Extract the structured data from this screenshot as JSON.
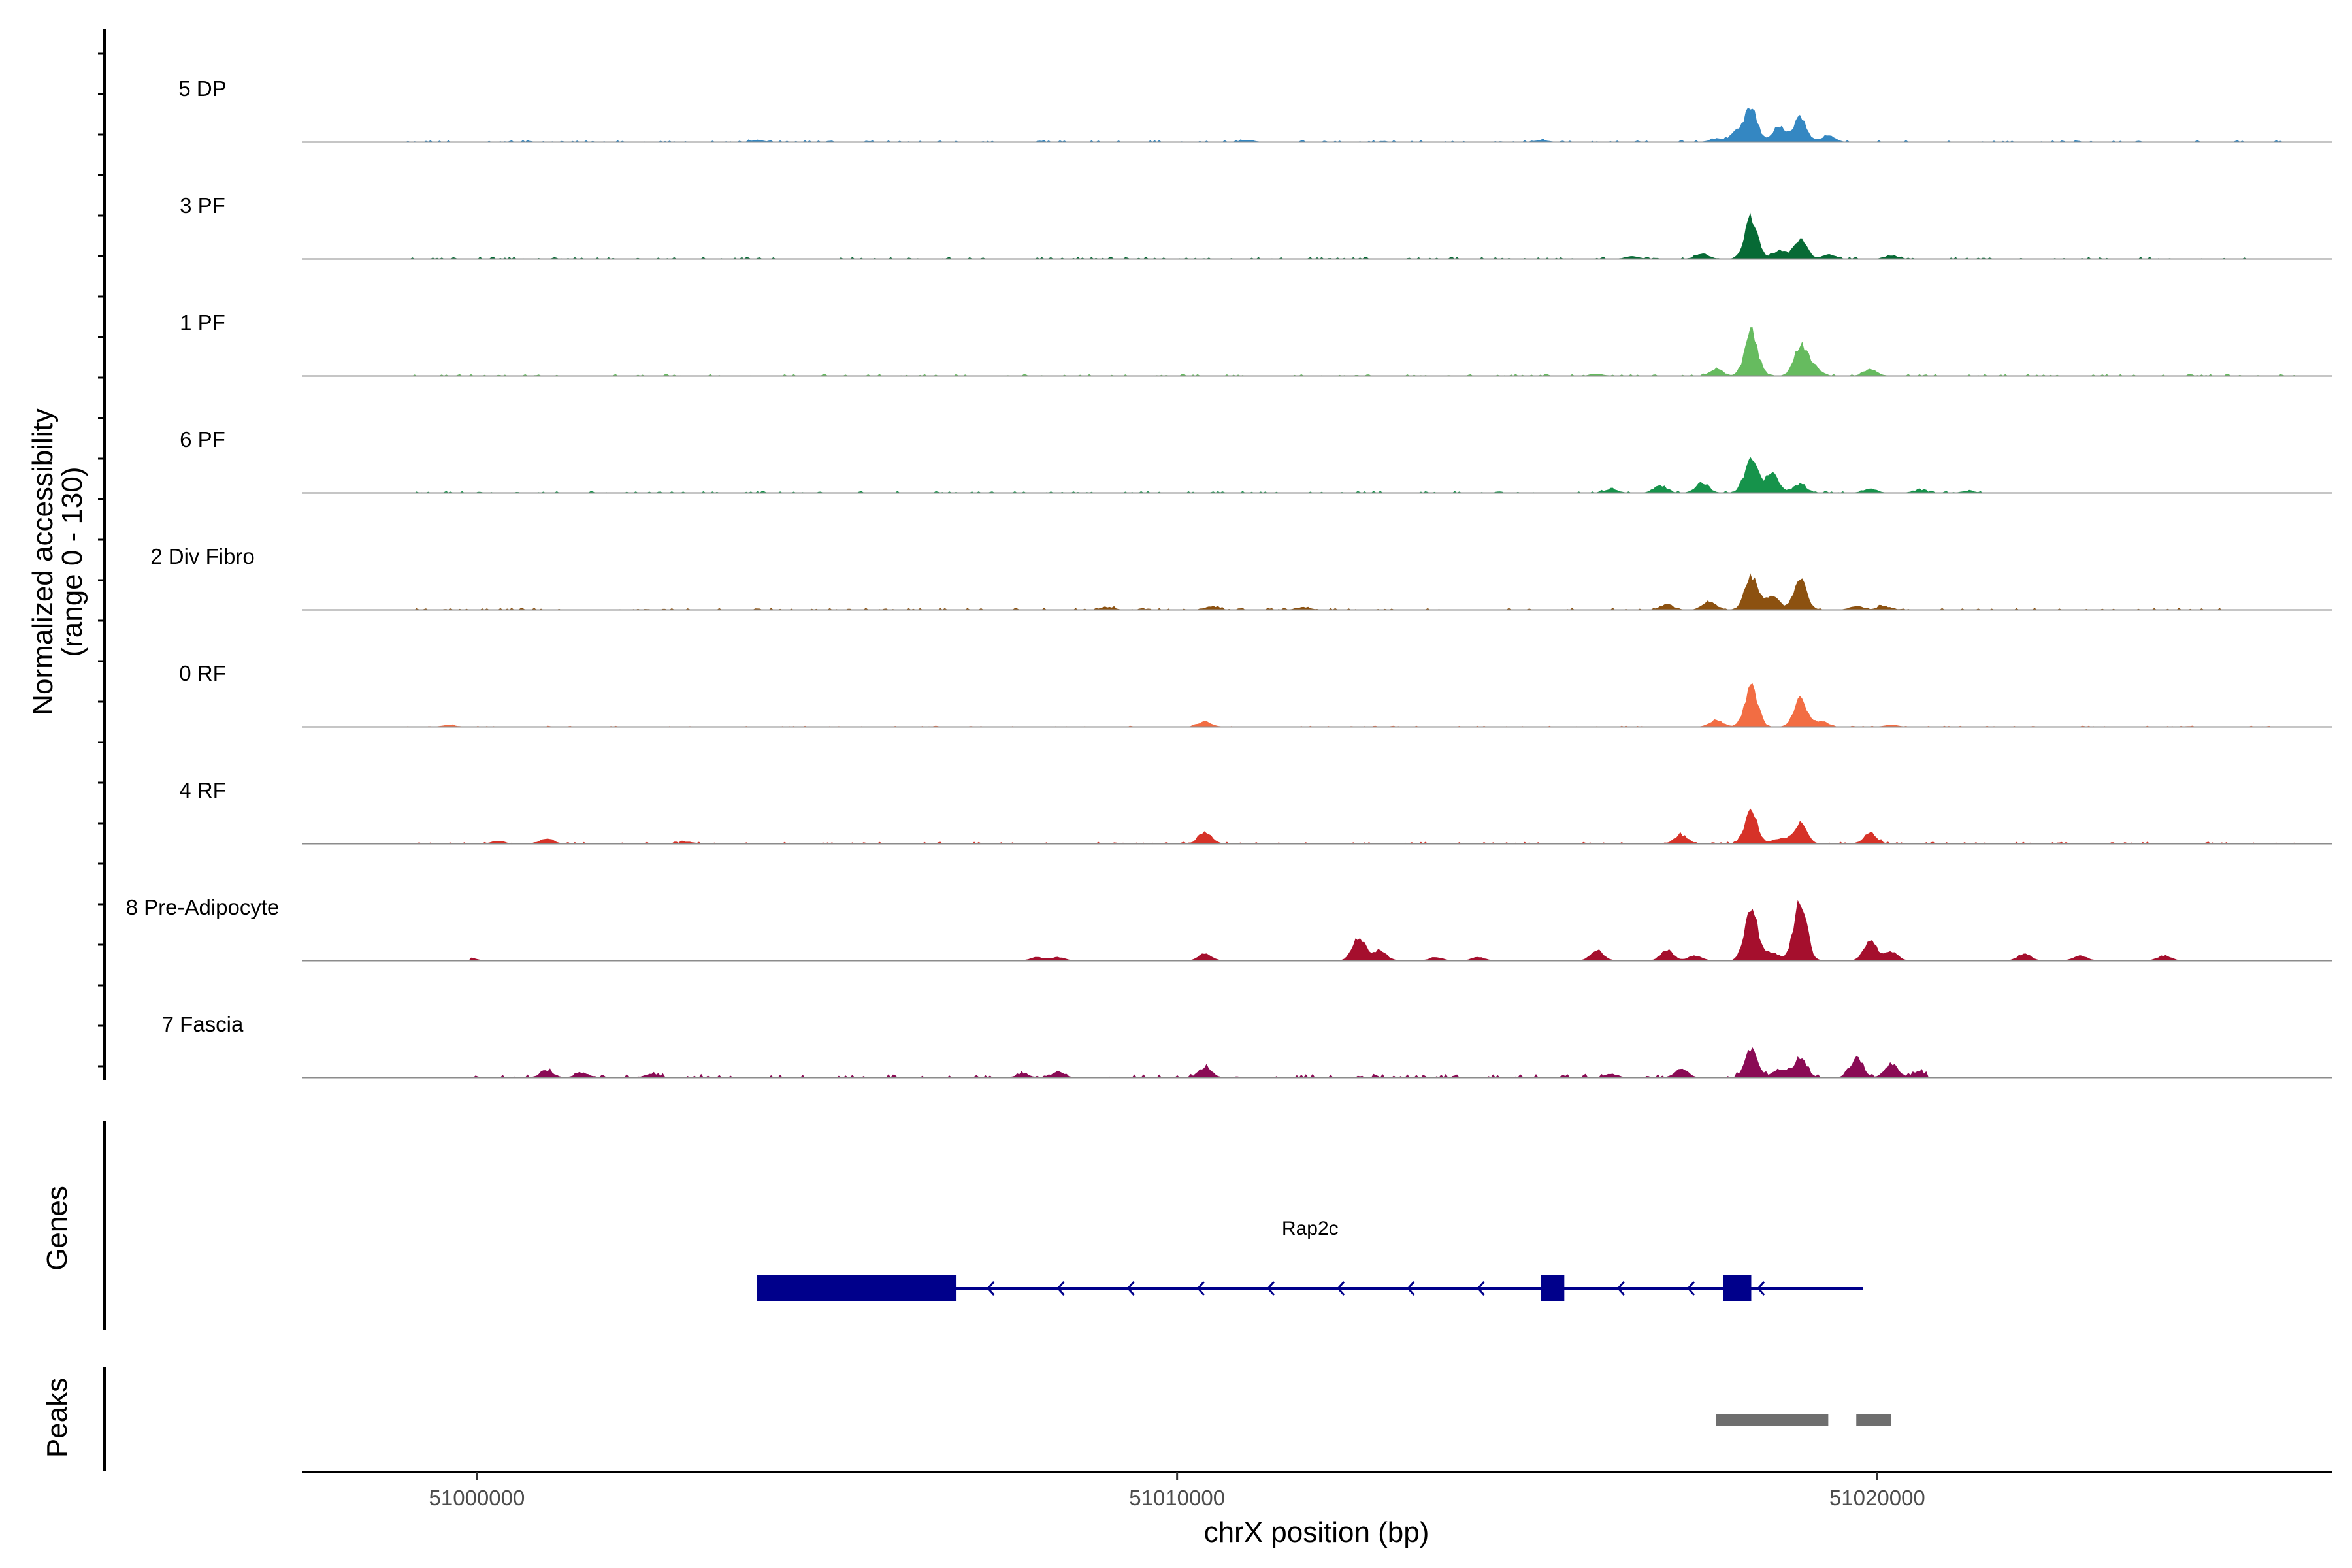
{
  "chart_data": {
    "type": "coverage",
    "chromosome": "chrX",
    "xlabel": "chrX position (bp)",
    "ylabel": [
      "Normalized accessibility",
      "(range 0 - 130)"
    ],
    "y_range": [
      0,
      130
    ],
    "xlim": [
      50997500,
      51026500
    ],
    "x_ticks": [
      {
        "value": 51000000,
        "label": "51000000"
      },
      {
        "value": 51010000,
        "label": "51010000"
      },
      {
        "value": 51020000,
        "label": "51020000"
      }
    ],
    "tracks": [
      {
        "name": "5 DP",
        "color": "#3487c2",
        "peaks": [
          [
            51018200,
            38
          ],
          [
            51018600,
            18
          ],
          [
            51018900,
            28
          ],
          [
            51018000,
            12
          ],
          [
            51019300,
            8
          ],
          [
            51017700,
            4
          ],
          [
            51015200,
            2
          ],
          [
            51011000,
            2
          ],
          [
            51004000,
            2
          ]
        ],
        "noise": 2,
        "range": [
          50999000,
          51026000
        ]
      },
      {
        "name": "3 PF",
        "color": "#076a35",
        "peaks": [
          [
            51018200,
            48
          ],
          [
            51018900,
            24
          ],
          [
            51018600,
            10
          ],
          [
            51017500,
            6
          ],
          [
            51020200,
            4
          ],
          [
            51016500,
            3
          ],
          [
            51019300,
            5
          ]
        ],
        "noise": 2,
        "range": [
          50999000,
          51026000
        ]
      },
      {
        "name": "1 PF",
        "color": "#66bb5f",
        "peaks": [
          [
            51018200,
            52
          ],
          [
            51018900,
            36
          ],
          [
            51019100,
            10
          ],
          [
            51017700,
            8
          ],
          [
            51019900,
            8
          ],
          [
            51016000,
            2
          ]
        ],
        "noise": 2,
        "range": [
          50999000,
          51026000
        ]
      },
      {
        "name": "6 PF",
        "color": "#16934b",
        "peaks": [
          [
            51018200,
            42
          ],
          [
            51018500,
            22
          ],
          [
            51018900,
            10
          ],
          [
            51017500,
            12
          ],
          [
            51016900,
            8
          ],
          [
            51019900,
            5
          ],
          [
            51016200,
            4
          ],
          [
            51020600,
            3
          ],
          [
            51021300,
            2
          ]
        ],
        "noise": 2,
        "range": [
          50999000,
          51021500
        ]
      },
      {
        "name": "2 Div Fibro",
        "color": "#8c5110",
        "peaks": [
          [
            51018200,
            38
          ],
          [
            51018900,
            34
          ],
          [
            51018500,
            16
          ],
          [
            51017600,
            10
          ],
          [
            51017000,
            6
          ],
          [
            51019700,
            4
          ],
          [
            51020100,
            4
          ],
          [
            51010500,
            4
          ],
          [
            51009000,
            3
          ],
          [
            51011800,
            3
          ]
        ],
        "noise": 2,
        "range": [
          50999000,
          51025000
        ]
      },
      {
        "name": "0 RF",
        "color": "#f26d43",
        "peaks": [
          [
            51018200,
            48
          ],
          [
            51018900,
            32
          ],
          [
            51017700,
            8
          ],
          [
            51019200,
            6
          ],
          [
            51010400,
            6
          ],
          [
            50999600,
            2
          ],
          [
            51020200,
            2
          ]
        ],
        "noise": 1,
        "range": [
          50999000,
          51026000
        ]
      },
      {
        "name": "4 RF",
        "color": "#d63228",
        "peaks": [
          [
            51018200,
            36
          ],
          [
            51018900,
            24
          ],
          [
            51017200,
            10
          ],
          [
            51018600,
            6
          ],
          [
            51010400,
            14
          ],
          [
            51019900,
            12
          ],
          [
            51001000,
            6
          ],
          [
            51003000,
            2
          ],
          [
            51000300,
            3
          ]
        ],
        "noise": 2,
        "range": [
          50999000,
          51026000
        ]
      },
      {
        "name": "8 Pre-Adipocyte",
        "color": "#a50f2d",
        "peaks": [
          [
            51018200,
            62
          ],
          [
            51018900,
            72
          ],
          [
            51018500,
            10
          ],
          [
            51019900,
            24
          ],
          [
            51020200,
            10
          ],
          [
            51012600,
            28
          ],
          [
            51012900,
            12
          ],
          [
            51016000,
            12
          ],
          [
            51017000,
            12
          ],
          [
            51017400,
            6
          ],
          [
            51010400,
            8
          ],
          [
            51022100,
            8
          ],
          [
            51024100,
            6
          ],
          [
            51022900,
            6
          ],
          [
            51008000,
            4
          ],
          [
            51008300,
            4
          ],
          [
            51014300,
            4
          ],
          [
            51013700,
            4
          ],
          [
            50999900,
            3
          ]
        ],
        "noise": 0,
        "range": [
          50999900,
          51024500
        ]
      },
      {
        "name": "7 Fascia",
        "color": "#8a0b55",
        "peaks": [
          [
            51018200,
            30
          ],
          [
            51018900,
            24
          ],
          [
            51018600,
            10
          ],
          [
            51019700,
            22
          ],
          [
            51020200,
            16
          ],
          [
            51020600,
            6
          ],
          [
            51017200,
            10
          ],
          [
            51016200,
            4
          ],
          [
            51010400,
            12
          ],
          [
            51001000,
            8
          ],
          [
            51001500,
            6
          ],
          [
            51002500,
            4
          ],
          [
            51007800,
            4
          ],
          [
            51008300,
            6
          ]
        ],
        "noise": 4,
        "range": [
          50999900,
          51020700
        ]
      }
    ],
    "genes": {
      "title": "Genes",
      "color": "#00008b",
      "items": [
        {
          "name": "Rap2c",
          "strand": "-",
          "start": 51004000,
          "end": 51019800,
          "exons": [
            [
              51004000,
              51006850
            ],
            [
              51015200,
              51015530
            ],
            [
              51017800,
              51018200
            ]
          ]
        }
      ]
    },
    "peaks_track": {
      "title": "Peaks",
      "color": "#6e6e6e",
      "regions": [
        [
          51017700,
          51019300
        ],
        [
          51019700,
          51020200
        ]
      ]
    }
  }
}
